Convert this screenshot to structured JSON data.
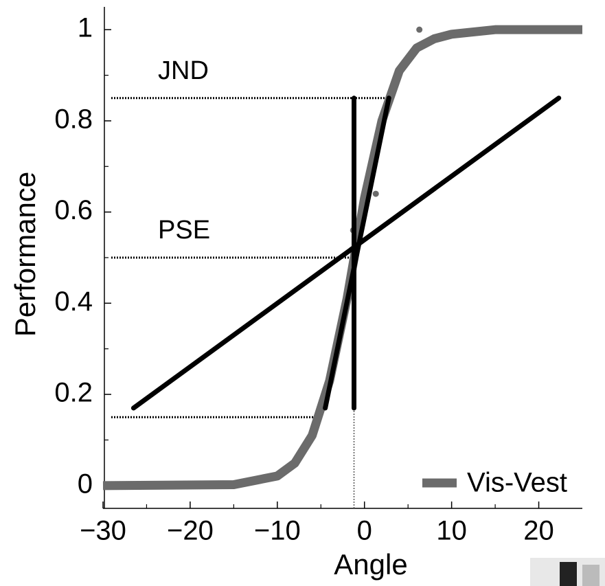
{
  "chart_data": {
    "type": "line",
    "xlabel": "Angle",
    "ylabel": "Performance",
    "xlim": [
      -30,
      25
    ],
    "ylim": [
      -0.05,
      1.05
    ],
    "xticks": [
      {
        "value": -30,
        "label": "−30"
      },
      {
        "value": -20,
        "label": "−20"
      },
      {
        "value": -10,
        "label": "−10"
      },
      0,
      10,
      20
    ],
    "xminorticks": [
      -25,
      -15,
      -5,
      5,
      15
    ],
    "yticks": [
      0,
      0.2,
      0.4,
      0.6,
      0.8,
      1
    ],
    "yminorticks": [
      0.1,
      0.3,
      0.5,
      0.7,
      0.9
    ],
    "legend": "lower right",
    "series": [
      {
        "name": "Vis-Vest",
        "color": "#6b6b6b",
        "x": [
          -30,
          -15,
          -10,
          -8,
          -6,
          -4,
          -2,
          0,
          2,
          4,
          6,
          8,
          10,
          15,
          25
        ],
        "values": [
          0,
          0.002,
          0.021,
          0.049,
          0.11,
          0.23,
          0.41,
          0.63,
          0.8,
          0.91,
          0.96,
          0.98,
          0.99,
          1,
          1
        ]
      }
    ],
    "points": {
      "color": "#6b6b6b",
      "x": [
        -5.2,
        -1.3,
        1.3,
        6.3
      ],
      "values": [
        0.16,
        0.56,
        0.64,
        1.0
      ]
    },
    "fit_lines": [
      {
        "color": "#000000",
        "x": [
          -26.5,
          22.3
        ],
        "values": [
          0.17,
          0.85
        ]
      },
      {
        "color": "#000000",
        "x": [
          -4.5,
          2.8
        ],
        "values": [
          0.17,
          0.85
        ]
      },
      {
        "color": "#000000",
        "x": [
          -1.2,
          -1.2
        ],
        "values": [
          0.17,
          0.85
        ]
      }
    ],
    "reference_lines": [
      {
        "label": "JND",
        "y": 0.85,
        "x_end": 2.8
      },
      {
        "label": "PSE",
        "y": 0.5,
        "x_end": -1.2
      },
      {
        "y": 0.15,
        "x_end": -5
      }
    ],
    "pse_x": -1.2
  }
}
